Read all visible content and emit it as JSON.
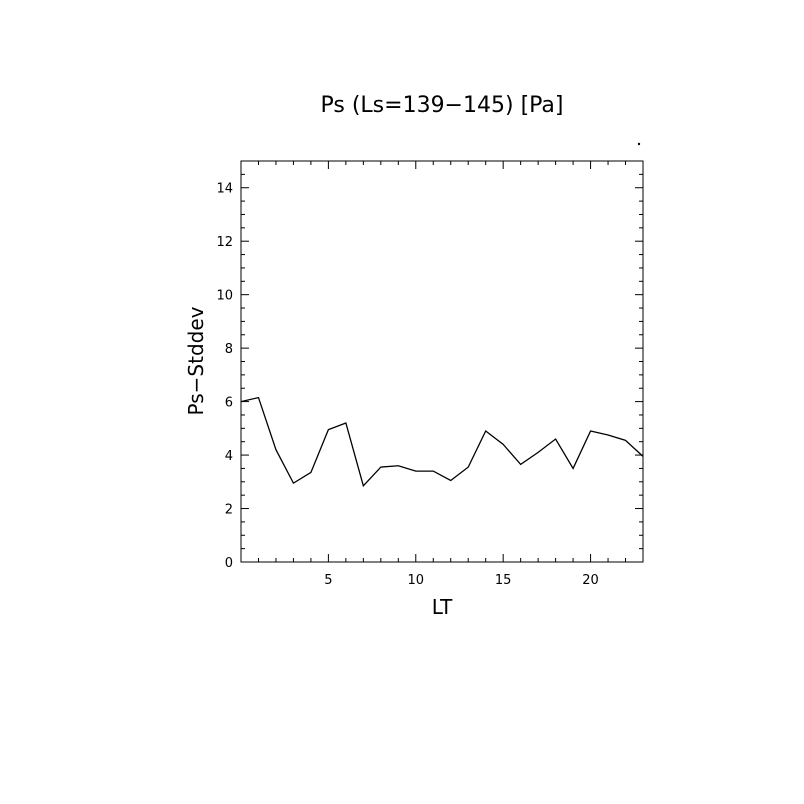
{
  "chart_data": {
    "type": "line",
    "title": "Ps (Ls=139−145) [Pa]",
    "xlabel": "LT",
    "ylabel": "Ps−Stddev",
    "xlim": [
      0,
      23
    ],
    "ylim": [
      0,
      15
    ],
    "xticks_major": [
      5,
      10,
      15,
      20
    ],
    "xticks_minor_step": 1,
    "yticks_major": [
      0,
      2,
      4,
      6,
      8,
      10,
      12,
      14
    ],
    "yticks_minor_step": 0.5,
    "grid": false,
    "legend": "none",
    "series": [
      {
        "x": [
          0,
          1,
          2,
          3,
          4,
          5,
          6,
          7,
          8,
          9,
          10,
          11,
          12,
          13,
          14,
          15,
          16,
          17,
          18,
          19,
          20,
          21,
          22,
          23
        ],
        "values": [
          6.0,
          6.15,
          4.2,
          2.95,
          3.35,
          4.95,
          5.2,
          2.85,
          3.55,
          3.6,
          3.4,
          3.4,
          3.05,
          3.55,
          4.9,
          4.4,
          3.65,
          4.1,
          4.6,
          3.5,
          4.9,
          4.75,
          4.55,
          3.95
        ]
      }
    ]
  }
}
